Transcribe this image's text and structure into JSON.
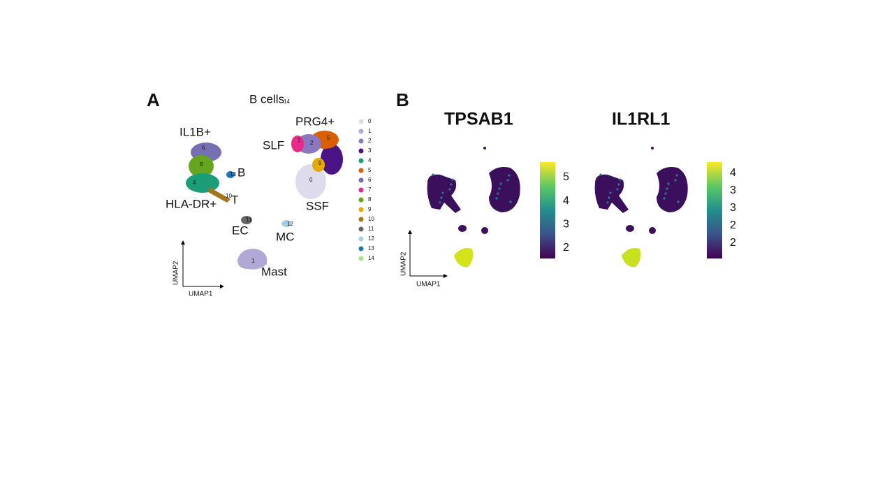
{
  "panel_a": {
    "letter": "A",
    "annotations": [
      "B cells",
      "14",
      "IL1B+",
      "PRG4+",
      "SLF",
      "B",
      "T",
      "HLA-DR+",
      "EC",
      "MC",
      "SSF",
      "Mast"
    ],
    "cluster_ids": [
      "6",
      "8",
      "4",
      "13",
      "10",
      "11",
      "12",
      "1",
      "7",
      "2",
      "5",
      "9",
      "0"
    ],
    "axes": [
      "UMAP1",
      "UMAP2"
    ],
    "legend": [
      {
        "label": 0,
        "color": "#dedbec"
      },
      {
        "label": 1,
        "color": "#b1a8d6"
      },
      {
        "label": 2,
        "color": "#8a78bf"
      },
      {
        "label": 3,
        "color": "#4a1486"
      },
      {
        "label": 4,
        "color": "#1b9e77"
      },
      {
        "label": 5,
        "color": "#d95f02"
      },
      {
        "label": 6,
        "color": "#7570b3"
      },
      {
        "label": 7,
        "color": "#e7298a"
      },
      {
        "label": 8,
        "color": "#66a61e"
      },
      {
        "label": 9,
        "color": "#e6ab02"
      },
      {
        "label": 10,
        "color": "#a6761d"
      },
      {
        "label": 11,
        "color": "#666666"
      },
      {
        "label": 12,
        "color": "#a6cee3"
      },
      {
        "label": 13,
        "color": "#1f78b4"
      },
      {
        "label": 14,
        "color": "#b2df8a"
      }
    ]
  },
  "panel_b": {
    "letter": "B",
    "axes": [
      "UMAP1",
      "UMAP2"
    ],
    "plots": [
      {
        "title": "TPSAB1",
        "colorbar": [
          5,
          4,
          3,
          2
        ]
      },
      {
        "title": "IL1RL1",
        "colorbar": [
          4,
          3,
          3,
          2,
          2
        ]
      }
    ]
  }
}
